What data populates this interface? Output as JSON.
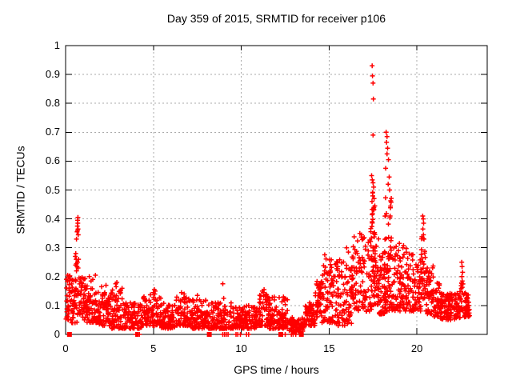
{
  "chart": {
    "title": "Day 359 of 2015, SRMTID for receiver p106",
    "xlabel": "GPS time / hours",
    "ylabel": "SRMTID / TECUs"
  },
  "chart_data": {
    "type": "scatter",
    "title": "Day 359 of 2015, SRMTID for receiver p106",
    "xlabel": "GPS time / hours",
    "ylabel": "SRMTID / TECUs",
    "xlim": [
      0,
      24
    ],
    "ylim": [
      0,
      1
    ],
    "x_ticks": [
      {
        "v": 0,
        "label": "0"
      },
      {
        "v": 5,
        "label": "5"
      },
      {
        "v": 10,
        "label": "10"
      },
      {
        "v": 15,
        "label": "15"
      },
      {
        "v": 20,
        "label": "20"
      }
    ],
    "y_ticks": [
      {
        "v": 0,
        "label": "0"
      },
      {
        "v": 0.1,
        "label": "0.1"
      },
      {
        "v": 0.2,
        "label": "0.2"
      },
      {
        "v": 0.3,
        "label": "0.3"
      },
      {
        "v": 0.4,
        "label": "0.4"
      },
      {
        "v": 0.5,
        "label": "0.5"
      },
      {
        "v": 0.6,
        "label": "0.6"
      },
      {
        "v": 0.7,
        "label": "0.7"
      },
      {
        "v": 0.8,
        "label": "0.8"
      },
      {
        "v": 0.9,
        "label": "0.9"
      },
      {
        "v": 1,
        "label": "1"
      }
    ],
    "grid": true,
    "legend": "none",
    "marker": {
      "shape": "plus",
      "color": "#ff0000",
      "size": 7
    },
    "colors": {
      "points": "#ff0000",
      "grid": "#a8a8a8",
      "border": "#000000",
      "text": "#000000",
      "background": "#ffffff"
    },
    "seed": 7,
    "band_segments": [
      [
        0.02,
        0.35,
        40,
        0.05,
        0.21,
        1.4
      ],
      [
        0.35,
        0.65,
        35,
        0.04,
        0.19,
        1.5
      ],
      [
        0.65,
        1.15,
        50,
        0.05,
        0.2,
        1.5
      ],
      [
        1.15,
        1.85,
        70,
        0.04,
        0.17,
        1.6
      ],
      [
        1.85,
        2.6,
        80,
        0.03,
        0.15,
        1.6
      ],
      [
        2.6,
        3.25,
        60,
        0.02,
        0.16,
        1.6
      ],
      [
        3.25,
        4.4,
        110,
        0.02,
        0.11,
        1.6
      ],
      [
        4.4,
        5.45,
        95,
        0.03,
        0.14,
        1.6
      ],
      [
        5.45,
        6.3,
        85,
        0.02,
        0.11,
        1.6
      ],
      [
        6.3,
        7.15,
        75,
        0.03,
        0.13,
        1.6
      ],
      [
        7.15,
        8.3,
        110,
        0.02,
        0.12,
        1.6
      ],
      [
        8.3,
        9.6,
        120,
        0.02,
        0.11,
        1.7
      ],
      [
        9.6,
        11.0,
        130,
        0.02,
        0.1,
        1.7
      ],
      [
        11.0,
        11.6,
        60,
        0.03,
        0.14,
        1.5
      ],
      [
        11.6,
        12.7,
        100,
        0.02,
        0.13,
        1.7
      ],
      [
        12.7,
        13.6,
        85,
        0.01,
        0.06,
        1.4
      ],
      [
        13.6,
        14.2,
        60,
        0.03,
        0.11,
        1.4
      ],
      [
        14.2,
        14.6,
        50,
        0.06,
        0.19,
        1.3
      ],
      [
        14.6,
        15.4,
        85,
        0.04,
        0.28,
        1.4
      ],
      [
        15.4,
        16.3,
        90,
        0.03,
        0.26,
        1.5
      ],
      [
        16.3,
        17.25,
        90,
        0.08,
        0.34,
        1.3
      ],
      [
        17.25,
        17.42,
        25,
        0.08,
        0.38,
        1.5
      ],
      [
        17.42,
        17.62,
        45,
        0.1,
        0.52,
        1.2
      ],
      [
        17.62,
        17.8,
        20,
        0.07,
        0.35,
        1.6
      ],
      [
        17.8,
        18.15,
        45,
        0.07,
        0.35,
        1.7
      ],
      [
        18.15,
        18.55,
        75,
        0.08,
        0.5,
        1.4
      ],
      [
        18.55,
        19.6,
        115,
        0.08,
        0.31,
        1.4
      ],
      [
        19.6,
        20.25,
        70,
        0.08,
        0.28,
        1.4
      ],
      [
        20.25,
        20.5,
        30,
        0.1,
        0.34,
        1.2
      ],
      [
        20.5,
        20.95,
        50,
        0.07,
        0.25,
        1.4
      ],
      [
        20.95,
        21.35,
        45,
        0.06,
        0.18,
        1.4
      ],
      [
        21.35,
        22.45,
        130,
        0.05,
        0.145,
        1.0
      ],
      [
        22.45,
        22.7,
        18,
        0.07,
        0.2,
        1.2
      ],
      [
        22.7,
        23.0,
        40,
        0.06,
        0.15,
        1.2
      ]
    ],
    "outliers": [
      [
        0.62,
        0.33
      ],
      [
        0.655,
        0.355
      ],
      [
        0.67,
        0.375
      ],
      [
        0.685,
        0.395
      ],
      [
        0.7,
        0.405
      ],
      [
        0.695,
        0.385
      ],
      [
        0.71,
        0.365
      ],
      [
        0.72,
        0.345
      ],
      [
        0.68,
        0.36
      ],
      [
        0.55,
        0.27
      ],
      [
        0.58,
        0.28
      ],
      [
        0.6,
        0.26
      ],
      [
        0.62,
        0.245
      ],
      [
        0.65,
        0.235
      ],
      [
        0.68,
        0.25
      ],
      [
        0.71,
        0.23
      ],
      [
        0.74,
        0.26
      ],
      [
        0.62,
        0.22
      ],
      [
        0.57,
        0.24
      ],
      [
        1.35,
        0.2
      ],
      [
        1.55,
        0.19
      ],
      [
        1.7,
        0.205
      ],
      [
        1.45,
        0.185
      ],
      [
        2.05,
        0.165
      ],
      [
        2.3,
        0.17
      ],
      [
        2.85,
        0.175
      ],
      [
        2.88,
        0.165
      ],
      [
        2.92,
        0.18
      ],
      [
        5.0,
        0.145
      ],
      [
        5.05,
        0.155
      ],
      [
        5.1,
        0.15
      ],
      [
        5.08,
        0.14
      ],
      [
        6.6,
        0.145
      ],
      [
        6.75,
        0.14
      ],
      [
        7.5,
        0.135
      ],
      [
        8.95,
        0.175
      ],
      [
        9.0,
        0.125
      ],
      [
        11.2,
        0.15
      ],
      [
        11.3,
        0.155
      ],
      [
        11.25,
        0.145
      ],
      [
        12.4,
        0.13
      ],
      [
        12.45,
        0.125
      ],
      [
        16.0,
        0.3
      ],
      [
        16.1,
        0.285
      ],
      [
        16.75,
        0.35
      ],
      [
        16.85,
        0.345
      ],
      [
        17.0,
        0.335
      ],
      [
        17.45,
        0.93
      ],
      [
        17.47,
        0.895
      ],
      [
        17.5,
        0.87
      ],
      [
        17.52,
        0.815
      ],
      [
        17.5,
        0.69
      ],
      [
        17.42,
        0.55
      ],
      [
        17.46,
        0.535
      ],
      [
        17.5,
        0.525
      ],
      [
        17.54,
        0.51
      ],
      [
        17.48,
        0.49
      ],
      [
        17.56,
        0.47
      ],
      [
        17.44,
        0.46
      ],
      [
        17.6,
        0.445
      ],
      [
        18.25,
        0.7
      ],
      [
        18.3,
        0.685
      ],
      [
        18.27,
        0.665
      ],
      [
        18.33,
        0.645
      ],
      [
        18.3,
        0.625
      ],
      [
        18.38,
        0.605
      ],
      [
        18.22,
        0.575
      ],
      [
        18.42,
        0.545
      ],
      [
        18.36,
        0.52
      ],
      [
        18.45,
        0.5
      ],
      [
        19.0,
        0.315
      ],
      [
        19.2,
        0.3
      ],
      [
        20.33,
        0.41
      ],
      [
        20.36,
        0.4
      ],
      [
        20.38,
        0.385
      ],
      [
        20.34,
        0.365
      ],
      [
        20.37,
        0.345
      ],
      [
        20.4,
        0.33
      ],
      [
        22.55,
        0.25
      ],
      [
        22.57,
        0.235
      ],
      [
        22.6,
        0.215
      ],
      [
        22.56,
        0.2
      ],
      [
        22.58,
        0.185
      ]
    ],
    "zero_markers": {
      "squares": [
        0.22,
        8.18,
        12.25,
        13.42
      ],
      "plus": [
        4.0,
        4.06,
        4.12,
        4.2,
        8.95,
        9.05,
        9.15,
        9.25,
        9.7,
        9.8,
        9.95,
        10.3,
        10.42,
        12.5,
        12.85,
        12.95,
        13.1
      ]
    }
  }
}
